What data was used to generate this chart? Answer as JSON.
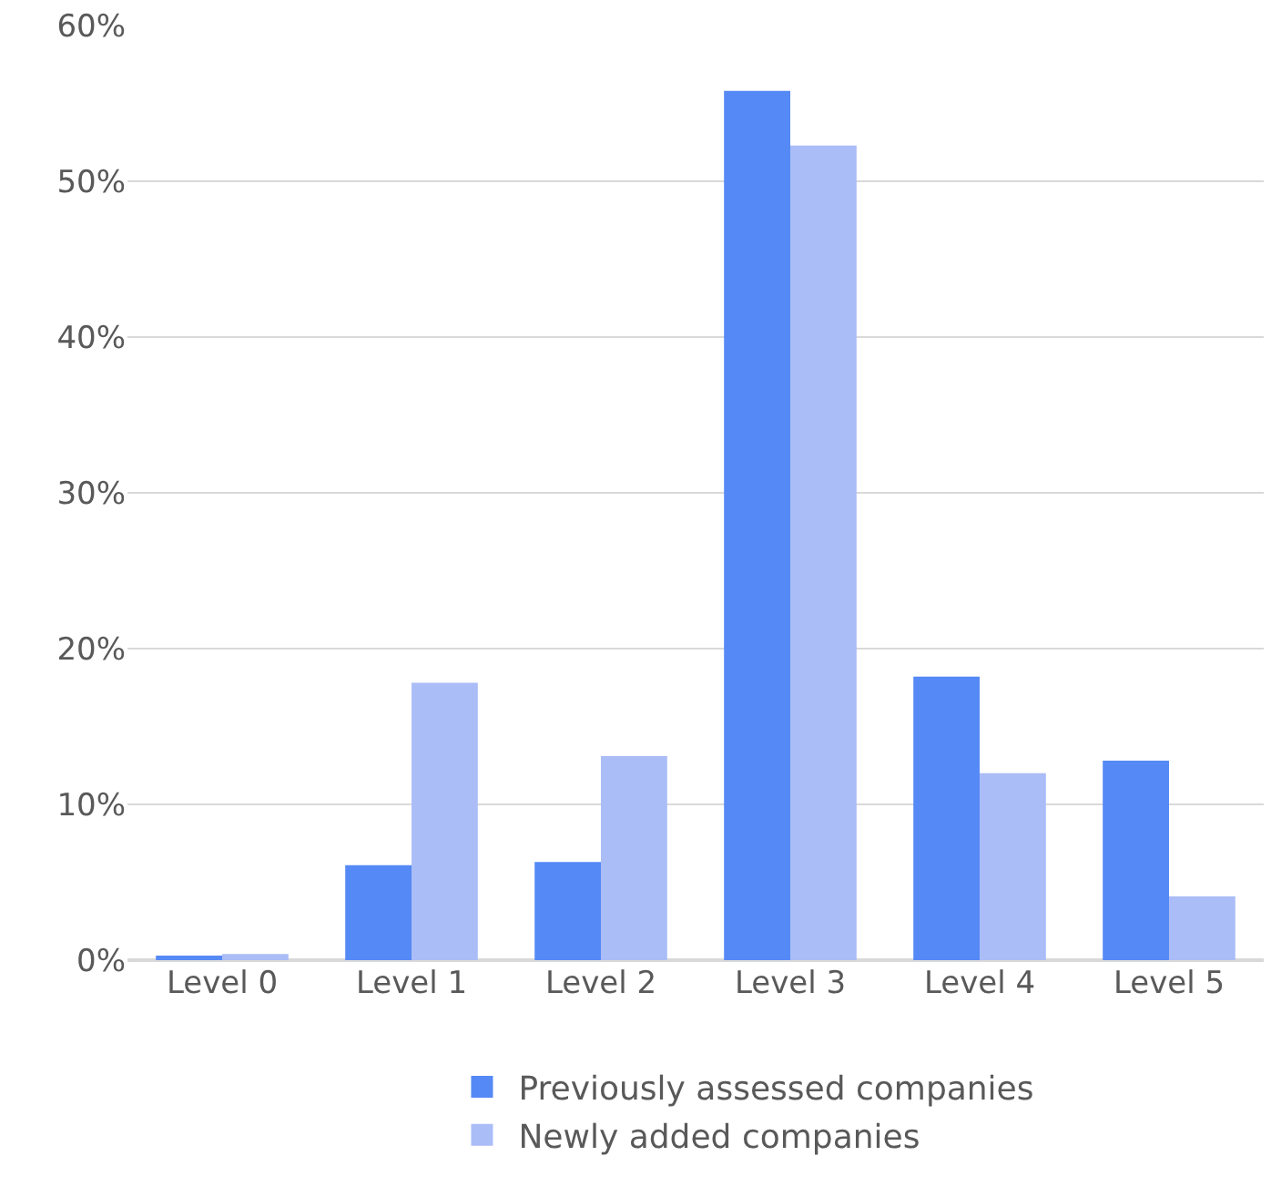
{
  "chart_data": {
    "type": "bar",
    "categories": [
      "Level 0",
      "Level 1",
      "Level 2",
      "Level 3",
      "Level 4",
      "Level 5"
    ],
    "series": [
      {
        "name": "Previously assessed companies",
        "color": "#5589f5",
        "values": [
          0.3,
          6.1,
          6.3,
          55.8,
          18.2,
          12.8
        ]
      },
      {
        "name": "Newly added companies",
        "color": "#abbdf7",
        "values": [
          0.4,
          17.8,
          13.1,
          52.3,
          12.0,
          4.1
        ]
      }
    ],
    "ylim": [
      0,
      60
    ],
    "yticks": [
      {
        "value": 0,
        "label": "0%"
      },
      {
        "value": 10,
        "label": "10%"
      },
      {
        "value": 20,
        "label": "20%"
      },
      {
        "value": 30,
        "label": "30%"
      },
      {
        "value": 40,
        "label": "40%"
      },
      {
        "value": 50,
        "label": "50%"
      },
      {
        "value": 60,
        "label": "60%"
      }
    ],
    "grid": "y",
    "legend": "bottom"
  }
}
